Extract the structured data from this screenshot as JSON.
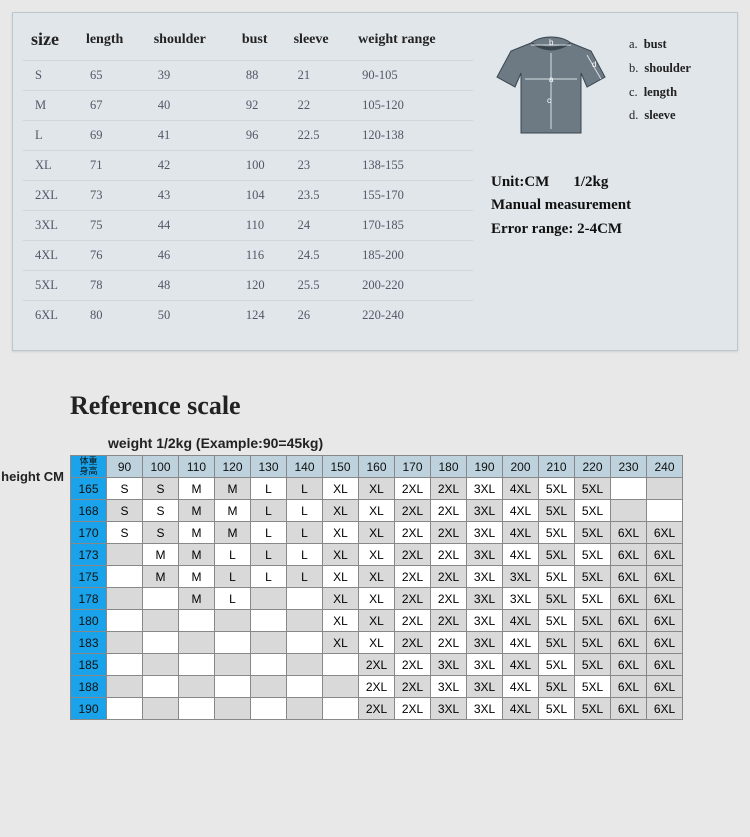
{
  "sizeTable": {
    "headers": [
      "size",
      "length",
      "shoulder",
      "bust",
      "sleeve",
      "weight range"
    ],
    "rows": [
      {
        "size": "S",
        "length": "65",
        "shoulder": "39",
        "bust": "88",
        "sleeve": "21",
        "weight": "90-105"
      },
      {
        "size": "M",
        "length": "67",
        "shoulder": "40",
        "bust": "92",
        "sleeve": "22",
        "weight": "105-120"
      },
      {
        "size": "L",
        "length": "69",
        "shoulder": "41",
        "bust": "96",
        "sleeve": "22.5",
        "weight": "120-138"
      },
      {
        "size": "XL",
        "length": "71",
        "shoulder": "42",
        "bust": "100",
        "sleeve": "23",
        "weight": "138-155"
      },
      {
        "size": "2XL",
        "length": "73",
        "shoulder": "43",
        "bust": "104",
        "sleeve": "23.5",
        "weight": "155-170"
      },
      {
        "size": "3XL",
        "length": "75",
        "shoulder": "44",
        "bust": "110",
        "sleeve": "24",
        "weight": "170-185"
      },
      {
        "size": "4XL",
        "length": "76",
        "shoulder": "46",
        "bust": "116",
        "sleeve": "24.5",
        "weight": "185-200"
      },
      {
        "size": "5XL",
        "length": "78",
        "shoulder": "48",
        "bust": "120",
        "sleeve": "25.5",
        "weight": "200-220"
      },
      {
        "size": "6XL",
        "length": "80",
        "shoulder": "50",
        "bust": "124",
        "sleeve": "26",
        "weight": "220-240"
      }
    ]
  },
  "legend": [
    {
      "key": "a.",
      "label": "bust"
    },
    {
      "key": "b.",
      "label": "shoulder"
    },
    {
      "key": "c.",
      "label": "length"
    },
    {
      "key": "d.",
      "label": "sleeve"
    }
  ],
  "unitBlock": {
    "unit": "Unit:CM",
    "weight": "1/2kg",
    "manual": "Manual measurement",
    "error": "Error range: 2-4CM"
  },
  "ref": {
    "title": "Reference scale",
    "weightCaption": "weight  1/2kg (Example:90=45kg)",
    "heightLabel": "height CM",
    "cornerTop": "体重",
    "cornerBottom": "身高",
    "weights": [
      "90",
      "100",
      "110",
      "120",
      "130",
      "140",
      "150",
      "160",
      "170",
      "180",
      "190",
      "200",
      "210",
      "220",
      "230",
      "240"
    ],
    "heights": [
      "165",
      "168",
      "170",
      "173",
      "175",
      "178",
      "180",
      "183",
      "185",
      "188",
      "190"
    ],
    "grid": [
      [
        "S",
        "S",
        "M",
        "M",
        "L",
        "L",
        "XL",
        "XL",
        "2XL",
        "2XL",
        "3XL",
        "4XL",
        "5XL",
        "5XL",
        "",
        ""
      ],
      [
        "S",
        "S",
        "M",
        "M",
        "L",
        "L",
        "XL",
        "XL",
        "2XL",
        "2XL",
        "3XL",
        "4XL",
        "5XL",
        "5XL",
        "",
        ""
      ],
      [
        "S",
        "S",
        "M",
        "M",
        "L",
        "L",
        "XL",
        "XL",
        "2XL",
        "2XL",
        "3XL",
        "4XL",
        "5XL",
        "5XL",
        "6XL",
        "6XL"
      ],
      [
        "",
        "M",
        "M",
        "L",
        "L",
        "L",
        "XL",
        "XL",
        "2XL",
        "2XL",
        "3XL",
        "4XL",
        "5XL",
        "5XL",
        "6XL",
        "6XL"
      ],
      [
        "",
        "M",
        "M",
        "L",
        "L",
        "L",
        "XL",
        "XL",
        "2XL",
        "2XL",
        "3XL",
        "3XL",
        "5XL",
        "5XL",
        "6XL",
        "6XL"
      ],
      [
        "",
        "",
        "M",
        "L",
        "",
        "",
        "XL",
        "XL",
        "2XL",
        "2XL",
        "3XL",
        "3XL",
        "5XL",
        "5XL",
        "6XL",
        "6XL"
      ],
      [
        "",
        "",
        "",
        "",
        "",
        "",
        "XL",
        "XL",
        "2XL",
        "2XL",
        "3XL",
        "4XL",
        "5XL",
        "5XL",
        "6XL",
        "6XL"
      ],
      [
        "",
        "",
        "",
        "",
        "",
        "",
        "XL",
        "XL",
        "2XL",
        "2XL",
        "3XL",
        "4XL",
        "5XL",
        "5XL",
        "6XL",
        "6XL"
      ],
      [
        "",
        "",
        "",
        "",
        "",
        "",
        "",
        "2XL",
        "2XL",
        "3XL",
        "3XL",
        "4XL",
        "5XL",
        "5XL",
        "6XL",
        "6XL"
      ],
      [
        "",
        "",
        "",
        "",
        "",
        "",
        "",
        "2XL",
        "2XL",
        "3XL",
        "3XL",
        "4XL",
        "5XL",
        "5XL",
        "6XL",
        "6XL"
      ],
      [
        "",
        "",
        "",
        "",
        "",
        "",
        "",
        "2XL",
        "2XL",
        "3XL",
        "3XL",
        "4XL",
        "5XL",
        "5XL",
        "6XL",
        "6XL"
      ]
    ],
    "shade": [
      [
        0,
        1,
        0,
        1,
        0,
        1,
        0,
        1,
        0,
        1,
        0,
        1,
        0,
        1,
        0,
        1
      ],
      [
        1,
        0,
        1,
        0,
        1,
        0,
        1,
        0,
        1,
        0,
        1,
        0,
        1,
        0,
        1,
        0
      ],
      [
        0,
        1,
        0,
        1,
        0,
        1,
        0,
        1,
        0,
        1,
        0,
        1,
        0,
        1,
        1,
        1
      ],
      [
        1,
        0,
        1,
        0,
        1,
        0,
        1,
        0,
        1,
        0,
        1,
        0,
        1,
        0,
        1,
        1
      ],
      [
        0,
        1,
        0,
        1,
        0,
        1,
        0,
        1,
        0,
        1,
        0,
        1,
        0,
        1,
        1,
        1
      ],
      [
        1,
        0,
        1,
        0,
        1,
        0,
        1,
        0,
        1,
        0,
        1,
        0,
        1,
        0,
        1,
        1
      ],
      [
        0,
        1,
        0,
        1,
        0,
        1,
        0,
        1,
        0,
        1,
        0,
        1,
        0,
        1,
        1,
        1
      ],
      [
        1,
        0,
        1,
        0,
        1,
        0,
        1,
        0,
        1,
        0,
        1,
        0,
        1,
        1,
        1,
        1
      ],
      [
        0,
        1,
        0,
        1,
        0,
        1,
        0,
        1,
        0,
        1,
        0,
        1,
        0,
        1,
        1,
        1
      ],
      [
        1,
        0,
        1,
        0,
        1,
        0,
        1,
        0,
        1,
        0,
        1,
        0,
        1,
        0,
        1,
        1
      ],
      [
        0,
        1,
        0,
        1,
        0,
        1,
        0,
        1,
        0,
        1,
        0,
        1,
        0,
        1,
        1,
        1
      ]
    ]
  },
  "colors": {
    "panelBg": "#e0e6ea",
    "panelBorder": "#bcc7cd",
    "bodyBg": "#e8e8e8",
    "blueHeader": "#1aa3ea",
    "weightHeader": "#bdd2dc",
    "greyCell": "#d9d9d9"
  }
}
